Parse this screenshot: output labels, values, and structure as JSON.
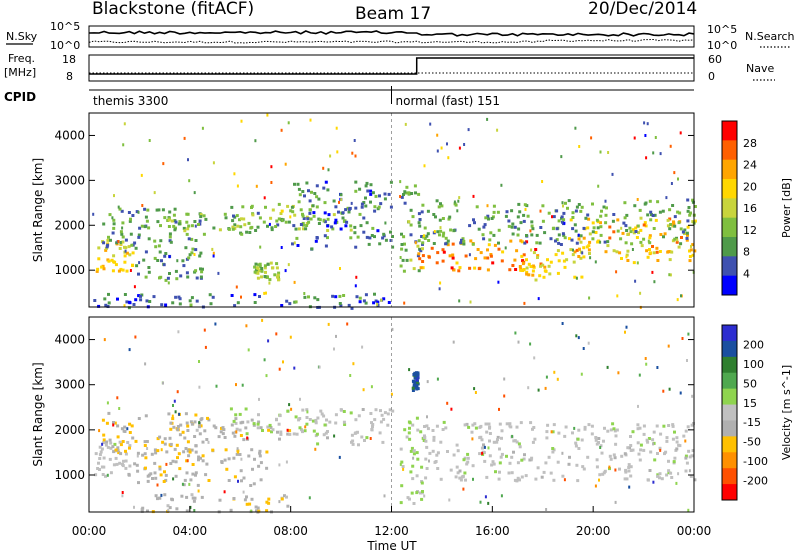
{
  "header": {
    "station": "Blackstone (fitACF)",
    "beam": "Beam 17",
    "date": "20/Dec/2014"
  },
  "noise_panel": {
    "left_label": "N.Sky",
    "right_label": "N.Search",
    "left_ticks": [
      "10^5",
      "10^0"
    ],
    "right_ticks": [
      "10^5",
      "10^0"
    ]
  },
  "freq_panel": {
    "left_label_1": "Freq.",
    "left_label_2": "[MHz]",
    "left_ticks": [
      "18",
      "8"
    ],
    "right_label": "Nave",
    "right_ticks": [
      "60",
      "0"
    ]
  },
  "cpid": {
    "label": "CPID",
    "modes": [
      {
        "name": "themis 3300",
        "start_hour": 0,
        "end_hour": 12
      },
      {
        "name": "normal (fast) 151",
        "start_hour": 12,
        "end_hour": 24
      }
    ]
  },
  "time_axis": {
    "label": "Time UT",
    "ticks": [
      "00:00",
      "04:00",
      "08:00",
      "12:00",
      "16:00",
      "20:00",
      "00:00"
    ]
  },
  "colors": {
    "power": [
      "#0000ff",
      "#3f51b0",
      "#4f9a4a",
      "#7fbf3f",
      "#c8d43c",
      "#ffd700",
      "#ffa500",
      "#ff6000",
      "#ff0000"
    ],
    "velocity": [
      "#2d2dd0",
      "#1a4fa0",
      "#2f7f2f",
      "#4fa84f",
      "#8fd44f",
      "#c0c0c0",
      "#b0b0b0",
      "#ffc000",
      "#ff9000",
      "#ff5000",
      "#ff0000"
    ]
  },
  "chart_data": [
    {
      "type": "heatmap",
      "name": "power",
      "ylabel": "Slant Range [km]",
      "xlabel": "Time UT",
      "ylim": [
        180,
        4500
      ],
      "xlim": [
        0,
        24
      ],
      "yticks": [
        1000,
        2000,
        3000,
        4000
      ],
      "colorbar": {
        "label": "Power [dB]",
        "ticks": [
          "28",
          "24",
          "20",
          "16",
          "12",
          "8",
          "4"
        ],
        "range": [
          0,
          30
        ]
      },
      "bands": [
        {
          "t0": 0.2,
          "t1": 1.7,
          "r0": 1000,
          "r1": 1700,
          "level": 18
        },
        {
          "t0": 0.5,
          "t1": 4.5,
          "r0": 1500,
          "r1": 2400,
          "level": 8
        },
        {
          "t0": 1.5,
          "t1": 4.5,
          "r0": 800,
          "r1": 1500,
          "level": 7
        },
        {
          "t0": 3.0,
          "t1": 8.0,
          "r0": 1800,
          "r1": 2300,
          "level": 10
        },
        {
          "t0": 5.5,
          "t1": 10.5,
          "r0": 1900,
          "r1": 2500,
          "level": 12
        },
        {
          "t0": 6.5,
          "t1": 7.5,
          "r0": 800,
          "r1": 1200,
          "level": 12
        },
        {
          "t0": 8.0,
          "t1": 12.0,
          "r0": 1500,
          "r1": 3000,
          "level": 6
        },
        {
          "t0": 12.3,
          "t1": 13.2,
          "r0": 1000,
          "r1": 3000,
          "level": 9
        },
        {
          "t0": 13.0,
          "t1": 18.0,
          "r0": 1000,
          "r1": 1700,
          "level": 24
        },
        {
          "t0": 17.0,
          "t1": 19.5,
          "r0": 800,
          "r1": 1500,
          "level": 18
        },
        {
          "t0": 19.0,
          "t1": 24.0,
          "r0": 1200,
          "r1": 2200,
          "level": 20
        },
        {
          "t0": 13.0,
          "t1": 24.0,
          "r0": 1600,
          "r1": 2600,
          "level": 8
        },
        {
          "t0": 0.0,
          "t1": 12.0,
          "r0": 180,
          "r1": 500,
          "level": 5
        }
      ]
    },
    {
      "type": "heatmap",
      "name": "velocity",
      "ylabel": "Slant Range [km]",
      "xlabel": "Time UT",
      "ylim": [
        180,
        4500
      ],
      "xlim": [
        0,
        24
      ],
      "yticks": [
        1000,
        2000,
        3000,
        4000
      ],
      "colorbar": {
        "label": "Velocity [m s^-1]",
        "ticks": [
          "200",
          "100",
          "50",
          "15",
          "-15",
          "-50",
          "-100",
          "-200"
        ],
        "range": [
          -250,
          250
        ]
      },
      "bands": [
        {
          "t0": 0.2,
          "t1": 1.7,
          "r0": 1000,
          "r1": 1800,
          "level": 0
        },
        {
          "t0": 0.5,
          "t1": 4.5,
          "r0": 1500,
          "r1": 2400,
          "level": -70
        },
        {
          "t0": 1.5,
          "t1": 7.0,
          "r0": 800,
          "r1": 1600,
          "level": -60
        },
        {
          "t0": 3.0,
          "t1": 8.0,
          "r0": 1800,
          "r1": 2300,
          "level": -50
        },
        {
          "t0": 5.5,
          "t1": 9.5,
          "r0": 1900,
          "r1": 2500,
          "level": 25
        },
        {
          "t0": 9.0,
          "t1": 12.0,
          "r0": 1700,
          "r1": 2500,
          "level": 0
        },
        {
          "t0": 12.3,
          "t1": 13.2,
          "r0": 300,
          "r1": 2400,
          "level": 30
        },
        {
          "t0": 12.8,
          "t1": 13.0,
          "r0": 2900,
          "r1": 3300,
          "level": 200
        },
        {
          "t0": 13.2,
          "t1": 24.0,
          "r0": 900,
          "r1": 2200,
          "level": 0
        },
        {
          "t0": 2.0,
          "t1": 8.0,
          "r0": 200,
          "r1": 600,
          "level": -50
        }
      ]
    }
  ]
}
